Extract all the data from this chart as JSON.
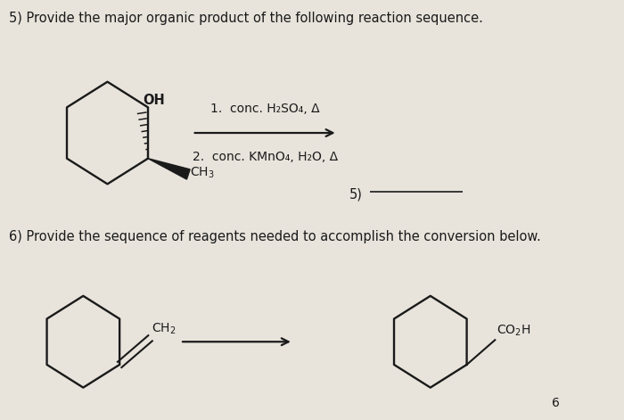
{
  "title5": "5) Provide the major organic product of the following reaction sequence.",
  "title6": "6) Provide the sequence of reagents needed to accomplish the conversion below.",
  "reagent1": "1.  conc. H₂SO₄, Δ",
  "reagent2": "2.  conc. KMnO₄, H₂O, Δ",
  "label5": "5)",
  "background_color": "#e8e4dc",
  "text_color": "#1a1a1a",
  "font_size_title": 10.5,
  "font_size_reagent": 10,
  "font_size_label": 10.5,
  "font_size_atom": 9.5
}
